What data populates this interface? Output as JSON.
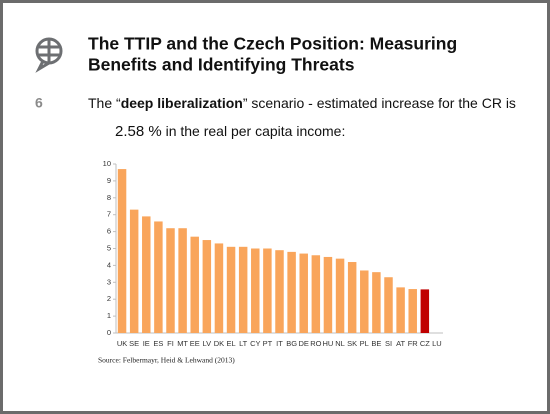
{
  "slide": {
    "title_lines": [
      "The TTIP and the Czech Position: Measuring",
      "Benefits and Identifying Threats"
    ],
    "number": "6",
    "text_start": "The “",
    "text_bold": "deep liberalization",
    "text_end": "” scenario - estimated increase for the CR is",
    "highlight": "2.58 %",
    "text_line2": " in the real per capita income:"
  },
  "chart_data": {
    "type": "bar",
    "source": "Source: Felbermayr, Heid & Lehwand (2013)",
    "categories": [
      "UK",
      "SE",
      "IE",
      "ES",
      "FI",
      "MT",
      "EE",
      "LV",
      "DK",
      "EL",
      "LT",
      "CY",
      "PT",
      "IT",
      "BG",
      "DE",
      "RO",
      "HU",
      "NL",
      "SK",
      "PL",
      "BE",
      "SI",
      "AT",
      "FR",
      "CZ",
      "LU"
    ],
    "values": [
      9.7,
      7.3,
      6.9,
      6.6,
      6.2,
      6.2,
      5.7,
      5.5,
      5.3,
      5.1,
      5.1,
      5.0,
      5.0,
      4.9,
      4.8,
      4.7,
      4.6,
      4.5,
      4.4,
      4.2,
      3.7,
      3.6,
      3.3,
      2.7,
      2.6,
      2.58,
      null
    ],
    "colors": [
      "#f9a55b",
      "#f9a55b",
      "#f9a55b",
      "#f9a55b",
      "#f9a55b",
      "#f9a55b",
      "#f9a55b",
      "#f9a55b",
      "#f9a55b",
      "#f9a55b",
      "#f9a55b",
      "#f9a55b",
      "#f9a55b",
      "#f9a55b",
      "#f9a55b",
      "#f9a55b",
      "#f9a55b",
      "#f9a55b",
      "#f9a55b",
      "#f9a55b",
      "#f9a55b",
      "#f9a55b",
      "#f9a55b",
      "#f9a55b",
      "#f9a55b",
      "#c00000",
      "#f9a55b"
    ],
    "ylim": [
      0,
      10
    ],
    "yticks": [
      0,
      1,
      2,
      3,
      4,
      5,
      6,
      7,
      8,
      9,
      10
    ],
    "grid": false
  }
}
